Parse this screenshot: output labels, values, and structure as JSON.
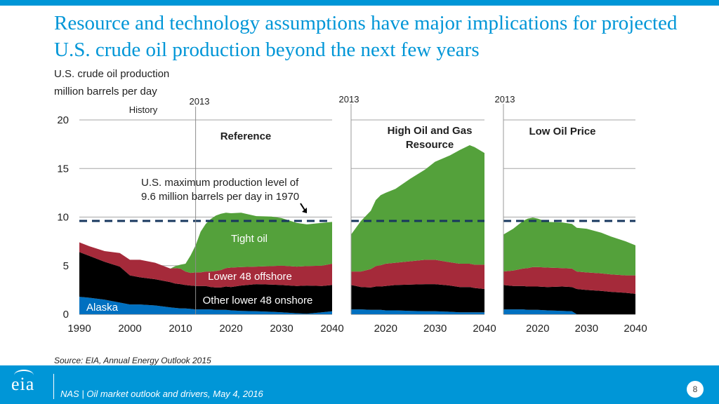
{
  "slide": {
    "title": "Resource and technology assumptions have major implications for projected U.S. crude oil production beyond the next few years",
    "subtitle_line1": "U.S. crude oil production",
    "subtitle_line2": "million barrels per day",
    "source": "Source:  EIA, Annual Energy Outlook 2015",
    "footer_text": "NAS | Oil market outlook and drivers, May 4, 2016",
    "logo_text": "eia",
    "page_number": "8"
  },
  "colors": {
    "accent": "#0096d7",
    "alaska": "#0070c0",
    "other_lower48_onshore": "#000000",
    "lower48_offshore": "#a52a3a",
    "tight_oil": "#54a13b",
    "max_line": "#17375e"
  },
  "chart_data": {
    "type": "area",
    "stacked": true,
    "ylim": [
      0,
      20
    ],
    "yticks": [
      0,
      5,
      10,
      15,
      20
    ],
    "grid": true,
    "series_names": [
      "Alaska",
      "Other lower 48 onshore",
      "Lower 48 offshore",
      "Tight oil"
    ],
    "history_label": "History",
    "year_2013_label": "2013",
    "max_production": {
      "value": 9.6,
      "label_line1": "U.S. maximum production level of",
      "label_line2": "9.6 million barrels per day in 1970"
    },
    "panels": [
      {
        "name": "Reference",
        "xlim": [
          1990,
          2040
        ],
        "xticks": [
          1990,
          2000,
          2010,
          2020,
          2030,
          2040
        ],
        "x": [
          1990,
          1992,
          1995,
          1998,
          2000,
          2002,
          2005,
          2008,
          2009,
          2010,
          2011,
          2012,
          2013,
          2014,
          2015,
          2016,
          2017,
          2018,
          2019,
          2020,
          2022,
          2025,
          2028,
          2030,
          2033,
          2035,
          2038,
          2040
        ],
        "alaska": [
          1.8,
          1.7,
          1.5,
          1.2,
          1.0,
          1.0,
          0.9,
          0.7,
          0.65,
          0.6,
          0.6,
          0.55,
          0.5,
          0.5,
          0.5,
          0.5,
          0.45,
          0.45,
          0.45,
          0.4,
          0.35,
          0.3,
          0.25,
          0.2,
          0.1,
          0.05,
          0.2,
          0.3
        ],
        "onshore": [
          4.6,
          4.3,
          3.9,
          3.7,
          3.0,
          2.8,
          2.7,
          2.6,
          2.5,
          2.5,
          2.4,
          2.4,
          2.4,
          2.4,
          2.4,
          2.3,
          2.3,
          2.3,
          2.4,
          2.4,
          2.6,
          2.8,
          2.8,
          2.8,
          2.8,
          2.9,
          2.7,
          2.7
        ],
        "offshore": [
          1.0,
          1.0,
          1.1,
          1.4,
          1.6,
          1.8,
          1.7,
          1.4,
          1.6,
          1.6,
          1.4,
          1.3,
          1.4,
          1.4,
          1.5,
          1.6,
          1.7,
          1.8,
          1.9,
          2.0,
          1.9,
          1.8,
          1.9,
          2.0,
          2.0,
          2.0,
          2.1,
          2.2
        ],
        "tight": [
          0.0,
          0.0,
          0.0,
          0.0,
          0.0,
          0.0,
          0.0,
          0.0,
          0.2,
          0.4,
          0.8,
          1.8,
          2.8,
          4.2,
          4.9,
          5.4,
          5.7,
          5.8,
          5.7,
          5.6,
          5.6,
          5.2,
          5.1,
          4.9,
          4.5,
          4.3,
          4.4,
          4.3
        ]
      },
      {
        "name": "High Oil and Gas Resource",
        "name_line1": "High Oil and Gas",
        "name_line2": "Resource",
        "xlim": [
          2013,
          2040
        ],
        "xticks": [
          2020,
          2030,
          2040
        ],
        "x": [
          2013,
          2015,
          2017,
          2018,
          2019,
          2020,
          2022,
          2025,
          2028,
          2030,
          2033,
          2035,
          2037,
          2038,
          2040
        ],
        "alaska": [
          0.5,
          0.5,
          0.45,
          0.45,
          0.45,
          0.4,
          0.4,
          0.35,
          0.3,
          0.3,
          0.25,
          0.2,
          0.2,
          0.2,
          0.2
        ],
        "onshore": [
          2.5,
          2.3,
          2.3,
          2.4,
          2.4,
          2.5,
          2.6,
          2.7,
          2.8,
          2.8,
          2.7,
          2.6,
          2.6,
          2.5,
          2.4
        ],
        "offshore": [
          1.4,
          1.6,
          1.9,
          2.1,
          2.2,
          2.3,
          2.3,
          2.4,
          2.5,
          2.5,
          2.4,
          2.4,
          2.4,
          2.4,
          2.5
        ],
        "tight": [
          3.8,
          5.2,
          6.0,
          6.8,
          7.2,
          7.3,
          7.6,
          8.5,
          9.3,
          10.1,
          11.0,
          11.7,
          12.2,
          12.1,
          11.5
        ]
      },
      {
        "name": "Low Oil Price",
        "xlim": [
          2013,
          2040
        ],
        "xticks": [
          2020,
          2030,
          2040
        ],
        "x": [
          2013,
          2015,
          2017,
          2018,
          2019,
          2020,
          2022,
          2025,
          2027,
          2028,
          2030,
          2033,
          2035,
          2038,
          2040
        ],
        "alaska": [
          0.5,
          0.5,
          0.5,
          0.45,
          0.45,
          0.45,
          0.4,
          0.35,
          0.3,
          0.0,
          0.0,
          0.0,
          0.0,
          0.0,
          0.0
        ],
        "onshore": [
          2.5,
          2.4,
          2.4,
          2.4,
          2.4,
          2.4,
          2.4,
          2.5,
          2.5,
          2.6,
          2.5,
          2.4,
          2.3,
          2.2,
          2.1
        ],
        "offshore": [
          1.4,
          1.6,
          1.8,
          1.9,
          2.0,
          2.0,
          2.0,
          1.9,
          1.9,
          1.8,
          1.8,
          1.8,
          1.8,
          1.8,
          1.9
        ],
        "tight": [
          3.8,
          4.3,
          4.9,
          5.1,
          5.1,
          5.0,
          4.7,
          4.7,
          4.6,
          4.5,
          4.5,
          4.2,
          3.9,
          3.5,
          3.1
        ]
      }
    ],
    "labels": {
      "tight_oil": "Tight oil",
      "lower48_offshore": "Lower 48 offshore",
      "other_lower48_onshore": "Other lower 48 onshore",
      "alaska": "Alaska"
    }
  }
}
